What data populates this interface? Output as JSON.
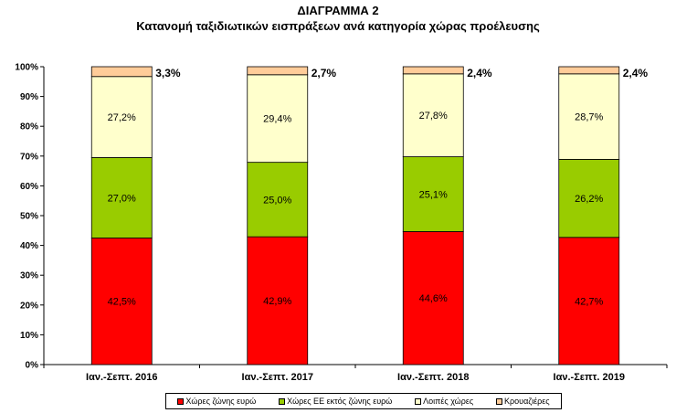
{
  "chart_data": {
    "type": "bar",
    "stacked": true,
    "normalized": true,
    "title": "ΔΙΑΓΡΑΜΜΑ 2",
    "subtitle": "Κατανομή ταξιδιωτικών εισπράξεων ανά κατηγορία χώρας προέλευσης",
    "categories": [
      "Ιαν.-Σεπτ. 2016",
      "Ιαν.-Σεπτ. 2017",
      "Ιαν.-Σεπτ. 2018",
      "Ιαν.-Σεπτ. 2019"
    ],
    "series": [
      {
        "name": "Χώρες ζώνης ευρώ",
        "color": "#ff0000",
        "values": [
          42.5,
          42.9,
          44.6,
          42.7
        ],
        "labels": [
          "42,5%",
          "42,9%",
          "44,6%",
          "42,7%"
        ]
      },
      {
        "name": "Χώρες ΕΕ εκτός ζώνης ευρώ",
        "color": "#99cc00",
        "values": [
          27.0,
          25.0,
          25.1,
          26.2
        ],
        "labels": [
          "27,0%",
          "25,0%",
          "25,1%",
          "26,2%"
        ]
      },
      {
        "name": "Λοιπές χώρες",
        "color": "#ffffcc",
        "values": [
          27.2,
          29.4,
          27.8,
          28.7
        ],
        "labels": [
          "27,2%",
          "29,4%",
          "27,8%",
          "28,7%"
        ]
      },
      {
        "name": "Κρουαζιέρες",
        "color": "#ffcc99",
        "values": [
          3.3,
          2.7,
          2.4,
          2.4
        ],
        "labels": [
          "3,3%",
          "2,7%",
          "2,4%",
          "2,4%"
        ]
      }
    ],
    "y_ticks": [
      "0%",
      "10%",
      "20%",
      "30%",
      "40%",
      "50%",
      "60%",
      "70%",
      "80%",
      "90%",
      "100%"
    ],
    "ylim": [
      0,
      100
    ],
    "grid": false,
    "legend": "bottom"
  }
}
